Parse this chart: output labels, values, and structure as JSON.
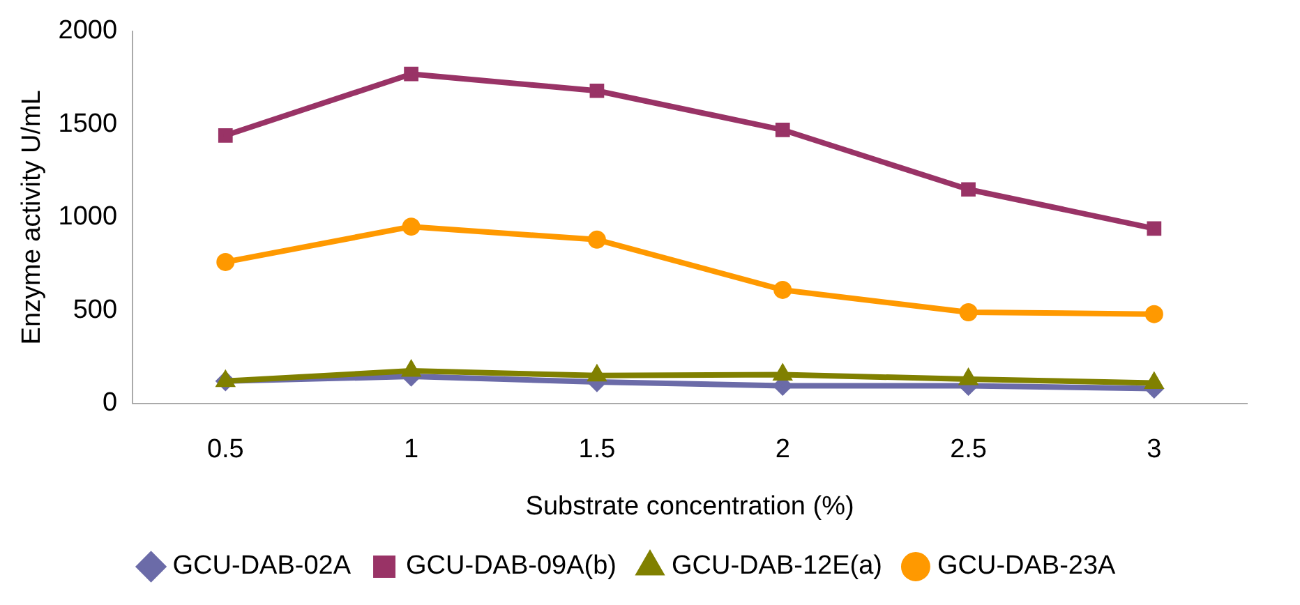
{
  "chart_data": {
    "type": "line",
    "xlabel": "Substrate concentration (%)",
    "ylabel": "Enzyme activity U/mL",
    "categories": [
      "0.5",
      "1",
      "1.5",
      "2",
      "2.5",
      "3"
    ],
    "series": [
      {
        "name": "GCU-DAB-02A",
        "color": "#6b6ba8",
        "marker": "diamond",
        "values": [
          120,
          145,
          115,
          95,
          95,
          80
        ]
      },
      {
        "name": "GCU-DAB-09A(b)",
        "color": "#993366",
        "marker": "square",
        "values": [
          1440,
          1770,
          1680,
          1470,
          1150,
          940
        ]
      },
      {
        "name": "GCU-DAB-12E(a)",
        "color": "#808000",
        "marker": "triangle",
        "values": [
          120,
          175,
          150,
          155,
          130,
          110
        ]
      },
      {
        "name": "GCU-DAB-23A",
        "color": "#ff9900",
        "marker": "circle",
        "values": [
          760,
          950,
          880,
          610,
          490,
          480
        ]
      }
    ],
    "ylim": [
      0,
      2000
    ],
    "yticks": [
      0,
      500,
      1000,
      1500,
      2000
    ],
    "grid": false,
    "legend": "bottom"
  }
}
